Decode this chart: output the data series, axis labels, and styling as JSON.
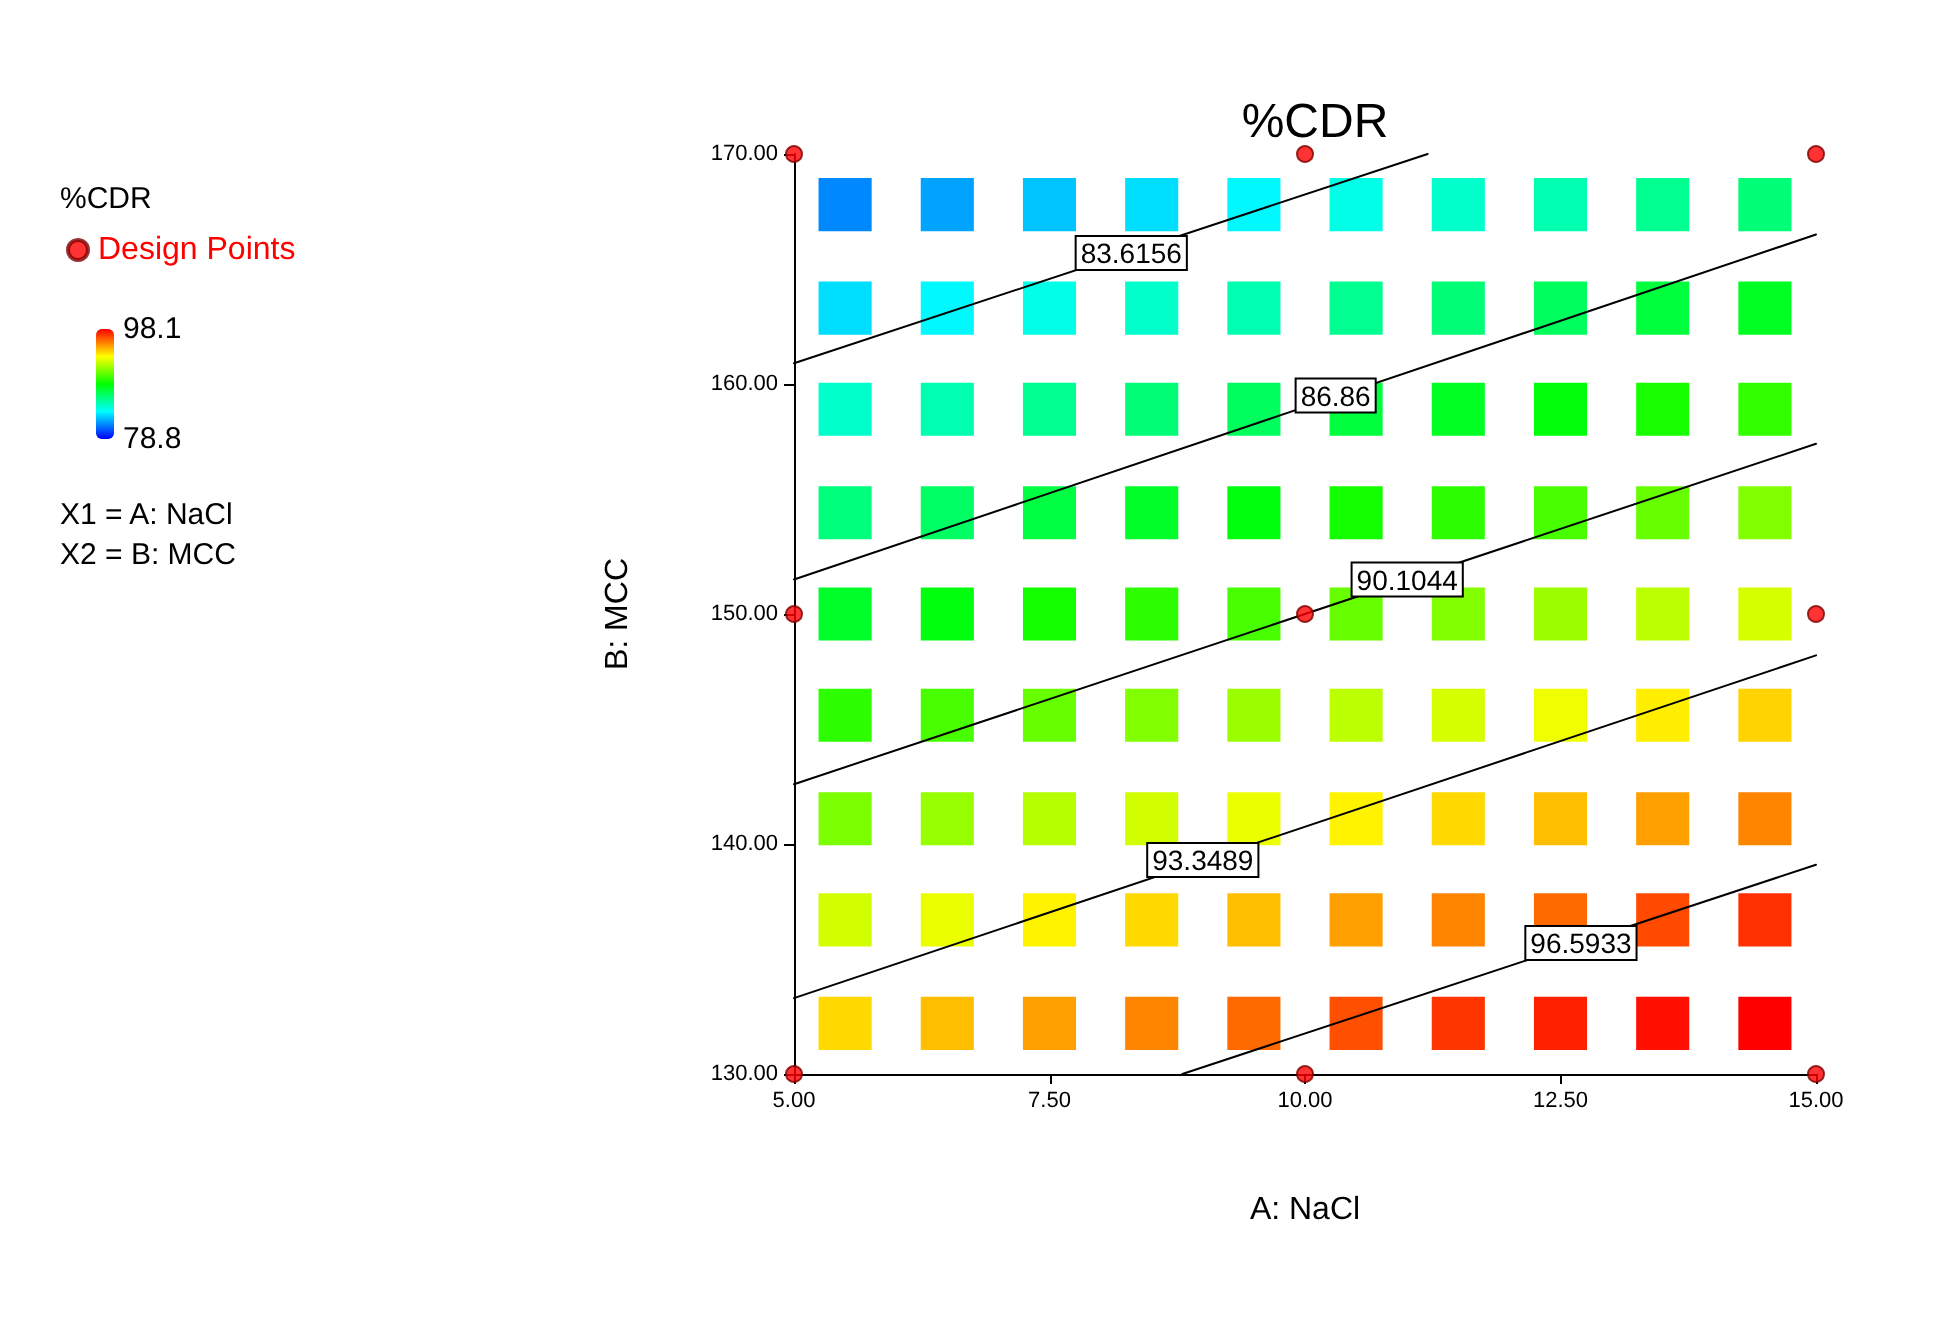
{
  "chart_data": {
    "type": "scatter",
    "title": "%CDR",
    "xlabel": "A: NaCl",
    "ylabel": "B: MCC",
    "legend_title": "%CDR",
    "clim": [
      78.8,
      98.1
    ],
    "cticks": [
      78.8,
      98.1
    ],
    "xlim": [
      5,
      15
    ],
    "xticks": [
      {
        "value": 5,
        "label": "5.00"
      },
      {
        "value": 7.5,
        "label": "7.50"
      },
      {
        "value": 10,
        "label": "10.00"
      },
      {
        "value": 12.5,
        "label": "12.50"
      },
      {
        "value": 15,
        "label": "15.00"
      }
    ],
    "ylim": [
      130,
      170
    ],
    "yticks": [
      {
        "value": 130,
        "label": "130.00"
      },
      {
        "value": 140,
        "label": "140.00"
      },
      {
        "value": 150,
        "label": "150.00"
      },
      {
        "value": 160,
        "label": "160.00"
      },
      {
        "value": 170,
        "label": "170.00"
      }
    ],
    "series": [
      {
        "type": "scatter",
        "marker": "square",
        "x": [
          5.5,
          6.5,
          7.5,
          8.5,
          9.5,
          10.5,
          11.5,
          12.5,
          13.5,
          14.5,
          5.5,
          6.5,
          7.5,
          8.5,
          9.5,
          10.5,
          11.5,
          12.5,
          13.5,
          14.5,
          5.5,
          6.5,
          7.5,
          8.5,
          9.5,
          10.5,
          11.5,
          12.5,
          13.5,
          14.5,
          5.5,
          6.5,
          7.5,
          8.5,
          9.5,
          10.5,
          11.5,
          12.5,
          13.5,
          14.5,
          5.5,
          6.5,
          7.5,
          8.5,
          9.5,
          10.5,
          11.5,
          12.5,
          13.5,
          14.5,
          5.5,
          6.5,
          7.5,
          8.5,
          9.5,
          10.5,
          11.5,
          12.5,
          13.5,
          14.5,
          5.5,
          6.5,
          7.5,
          8.5,
          9.5,
          10.5,
          11.5,
          12.5,
          13.5,
          14.5,
          5.5,
          6.5,
          7.5,
          8.5,
          9.5,
          10.5,
          11.5,
          12.5,
          13.5,
          14.5,
          5.5,
          6.5,
          7.5,
          8.5,
          9.5,
          10.5,
          11.5,
          12.5,
          13.5,
          14.5
        ],
        "values": [
          167.8,
          167.8,
          167.8,
          167.8,
          167.8,
          167.8,
          167.8,
          167.8,
          167.8,
          167.8,
          163.3,
          163.3,
          163.3,
          163.3,
          163.3,
          163.3,
          163.3,
          163.3,
          163.3,
          163.3,
          158.9,
          158.9,
          158.9,
          158.9,
          158.9,
          158.9,
          158.9,
          158.9,
          158.9,
          158.9,
          154.4,
          154.4,
          154.4,
          154.4,
          154.4,
          154.4,
          154.4,
          154.4,
          154.4,
          154.4,
          150,
          150,
          150,
          150,
          150,
          150,
          150,
          150,
          150,
          150,
          145.6,
          145.6,
          145.6,
          145.6,
          145.6,
          145.6,
          145.6,
          145.6,
          145.6,
          145.6,
          141.1,
          141.1,
          141.1,
          141.1,
          141.1,
          141.1,
          141.1,
          141.1,
          141.1,
          141.1,
          136.7,
          136.7,
          136.7,
          136.7,
          136.7,
          136.7,
          136.7,
          136.7,
          136.7,
          136.7,
          132.2,
          132.2,
          132.2,
          132.2,
          132.2,
          132.2,
          132.2,
          132.2,
          132.2,
          132.2
        ],
        "cvalues": [
          81.4,
          81.9,
          82.5,
          83.0,
          83.5,
          84.1,
          84.6,
          85.1,
          85.7,
          86.2,
          83.0,
          83.5,
          84.1,
          84.6,
          85.1,
          85.7,
          86.2,
          86.7,
          87.3,
          87.8,
          84.6,
          85.1,
          85.7,
          86.2,
          86.7,
          87.3,
          87.8,
          88.3,
          88.9,
          89.4,
          86.1,
          86.6,
          87.2,
          87.7,
          88.2,
          88.8,
          89.3,
          89.8,
          90.4,
          90.9,
          87.7,
          88.2,
          88.8,
          89.3,
          89.8,
          90.4,
          90.9,
          91.4,
          92.0,
          92.5,
          89.3,
          89.8,
          90.4,
          90.9,
          91.4,
          92.0,
          92.5,
          93.0,
          93.6,
          94.1,
          90.8,
          91.3,
          91.9,
          92.4,
          92.9,
          93.5,
          94.0,
          94.5,
          95.1,
          95.6,
          92.4,
          92.9,
          93.5,
          94.0,
          94.5,
          95.1,
          95.6,
          96.1,
          96.7,
          97.2,
          94.0,
          94.5,
          95.1,
          95.6,
          96.1,
          96.6,
          97.1,
          97.5,
          97.8,
          98.1
        ],
        "colors": [
          "#0089ff",
          "#00a4ff",
          "#00c4ff",
          "#00deff",
          "#00f8ff",
          "#00ffe6",
          "#00ffcb",
          "#00ffb1",
          "#00ff91",
          "#00ff77",
          "#00deff",
          "#00f8ff",
          "#00ffe6",
          "#00ffcb",
          "#00ffb1",
          "#00ff91",
          "#00ff77",
          "#00ff5d",
          "#00ff3d",
          "#00ff22",
          "#00ffcb",
          "#00ffb1",
          "#00ff91",
          "#00ff77",
          "#00ff5d",
          "#00ff3d",
          "#00ff22",
          "#00ff08",
          "#18ff00",
          "#32ff00",
          "#00ff7c",
          "#00ff62",
          "#00ff42",
          "#00ff28",
          "#00ff0d",
          "#13ff00",
          "#2dff00",
          "#47ff00",
          "#67ff00",
          "#82ff00",
          "#00ff28",
          "#00ff0d",
          "#13ff00",
          "#2dff00",
          "#47ff00",
          "#67ff00",
          "#82ff00",
          "#9cff00",
          "#bcff00",
          "#d6ff00",
          "#2dff00",
          "#47ff00",
          "#67ff00",
          "#82ff00",
          "#9cff00",
          "#bcff00",
          "#d6ff00",
          "#f0ff00",
          "#ffee00",
          "#ffd300",
          "#7cff00",
          "#97ff00",
          "#b6ff00",
          "#d1ff00",
          "#ebff00",
          "#fff300",
          "#ffd900",
          "#ffbe00",
          "#ff9f00",
          "#ff8400",
          "#d1ff00",
          "#ebff00",
          "#fff300",
          "#ffd900",
          "#ffbe00",
          "#ff9f00",
          "#ff8400",
          "#ff6a00",
          "#ff4a00",
          "#ff3000",
          "#ffd900",
          "#ffbe00",
          "#ff9f00",
          "#ff8400",
          "#ff6a00",
          "#ff4f00",
          "#ff3500",
          "#ff2000",
          "#ff1000",
          "#ff0000"
        ]
      },
      {
        "type": "line",
        "color": "#000000",
        "x": [
          5,
          11.2
        ],
        "values": [
          160.9,
          170
        ]
      },
      {
        "type": "line",
        "color": "#000000",
        "x": [
          5,
          15
        ],
        "values": [
          151.5,
          166.5
        ]
      },
      {
        "type": "line",
        "color": "#000000",
        "x": [
          5,
          15
        ],
        "values": [
          142.6,
          157.4
        ]
      },
      {
        "type": "line",
        "color": "#000000",
        "x": [
          5,
          15
        ],
        "values": [
          133.3,
          148.2
        ]
      },
      {
        "type": "line",
        "color": "#000000",
        "x": [
          8.8,
          15
        ],
        "values": [
          130,
          139.1
        ]
      },
      {
        "type": "scatter",
        "name": "Design Points",
        "color": "#ff0000",
        "marker": "circle",
        "x": [
          5,
          10,
          15,
          5,
          10,
          15,
          5,
          10,
          15
        ],
        "values": [
          170,
          170,
          170,
          150,
          150,
          150,
          130,
          130,
          130
        ]
      }
    ],
    "annotations": [
      {
        "text": "83.6156",
        "x": 8.3,
        "y": 165.7
      },
      {
        "text": "86.86",
        "x": 10.3,
        "y": 159.5
      },
      {
        "text": "90.1044",
        "x": 11,
        "y": 151.5
      },
      {
        "text": "93.3489",
        "x": 9,
        "y": 139.3
      },
      {
        "text": "96.5933",
        "x": 12.7,
        "y": 135.7
      },
      "X1 = A: NaCl",
      "X2 = B: MCC"
    ],
    "line_style": "solid",
    "legend": "top left"
  }
}
